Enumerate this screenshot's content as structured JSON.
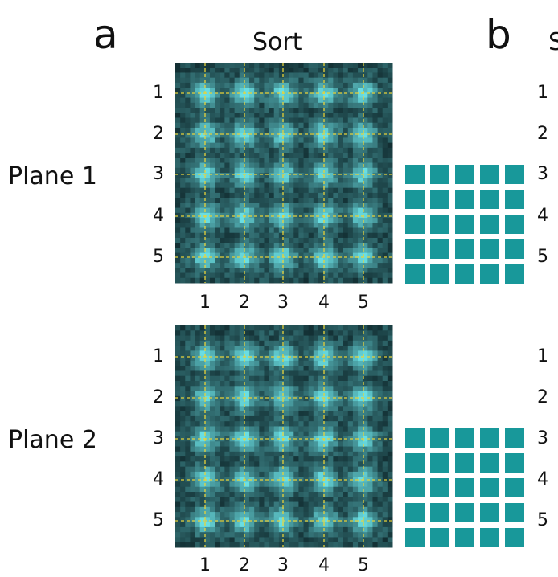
{
  "panels": [
    {
      "letter": "a",
      "title": "Sort"
    },
    {
      "letter": "b",
      "title": "S"
    }
  ],
  "rows": [
    {
      "label": "Plane 1"
    },
    {
      "label": "Plane 2"
    }
  ],
  "grid": {
    "rows": [
      "1",
      "2",
      "3",
      "4",
      "5"
    ],
    "cols": [
      "1",
      "2",
      "3",
      "4",
      "5"
    ]
  },
  "colors": {
    "background_dark": "#06161a",
    "spot": "#5fd6d6",
    "grid_line": "#e8d23a",
    "square": "#18989a"
  }
}
